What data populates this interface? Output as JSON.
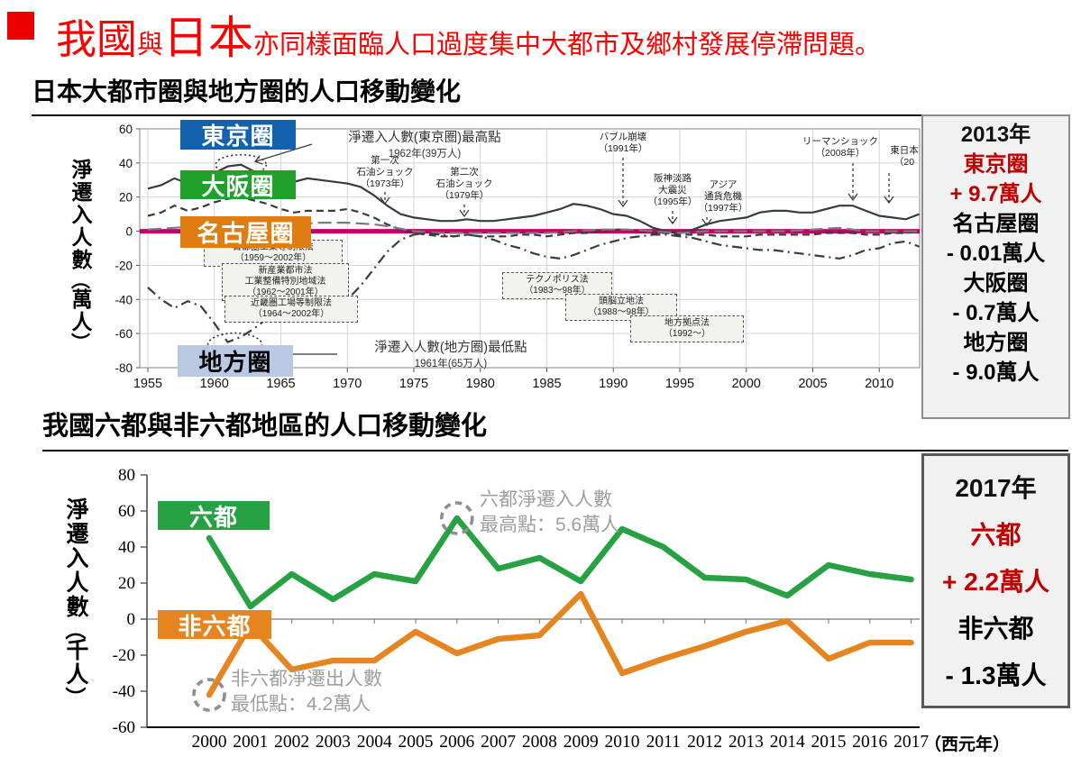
{
  "header": {
    "bullet_color": "#ee0000",
    "text_color": "#fb0000",
    "title_parts": [
      {
        "text": "我國",
        "size": "large"
      },
      {
        "text": "與",
        "size": "small"
      },
      {
        "text": "日本",
        "size": "xlarge"
      },
      {
        "text": "亦同樣面臨人口過度集中大都市及鄉村發展停滯問題。",
        "size": "small"
      }
    ]
  },
  "section1": {
    "title": "日本大都市圈與地方圈的人口移動變化"
  },
  "section2": {
    "title": "我國六都與非六都地區的人口移動變化"
  },
  "japan_summary_box": {
    "year": "2013年",
    "entries": [
      {
        "label": "東京圈",
        "value": "+ 9.7萬人",
        "color": "#c00000"
      },
      {
        "label": "名古屋圈",
        "value": "- 0.01萬人",
        "color": "#000000"
      },
      {
        "label": "大阪圈",
        "value": "- 0.7萬人",
        "color": "#000000"
      },
      {
        "label": "地方圈",
        "value": "- 9.0萬人",
        "color": "#000000"
      }
    ]
  },
  "taiwan_summary_box": {
    "year": "2017年",
    "entries": [
      {
        "label": "六都",
        "value": "+ 2.2萬人",
        "color": "#c00000"
      },
      {
        "label": "非六都",
        "value": "- 1.3萬人",
        "color": "#000000"
      }
    ]
  },
  "chart_data": [
    {
      "id": "japan-migration",
      "type": "line",
      "title": "日本大都市圈與地方圈的人口移動變化",
      "ylabel": "淨遷入人數（萬人）",
      "ylim": [
        -80,
        60
      ],
      "yticks": [
        60,
        40,
        20,
        0,
        -20,
        -40,
        -60,
        -80
      ],
      "xticks": [
        1955,
        1960,
        1965,
        1970,
        1975,
        1980,
        1985,
        1990,
        1995,
        2000,
        2005,
        2010
      ],
      "xrange": [
        1955,
        2013
      ],
      "grid": true,
      "zero_line_color": "#c10067",
      "series": [
        {
          "name": "東京圈",
          "style": "solid",
          "color": "#3b3b3b",
          "chip_bg": "#1461ae",
          "chip_fg": "#ffffff",
          "points": [
            [
              1955,
              25
            ],
            [
              1956,
              27
            ],
            [
              1957,
              31
            ],
            [
              1958,
              28
            ],
            [
              1959,
              31
            ],
            [
              1960,
              34
            ],
            [
              1961,
              38
            ],
            [
              1962,
              39
            ],
            [
              1963,
              35
            ],
            [
              1964,
              32
            ],
            [
              1965,
              30
            ],
            [
              1966,
              29
            ],
            [
              1967,
              31
            ],
            [
              1968,
              30
            ],
            [
              1969,
              29
            ],
            [
              1970,
              28
            ],
            [
              1971,
              26
            ],
            [
              1972,
              21
            ],
            [
              1973,
              15
            ],
            [
              1974,
              10
            ],
            [
              1975,
              8
            ],
            [
              1976,
              7
            ],
            [
              1977,
              6
            ],
            [
              1978,
              6
            ],
            [
              1979,
              7
            ],
            [
              1980,
              6
            ],
            [
              1981,
              6
            ],
            [
              1982,
              7
            ],
            [
              1983,
              8
            ],
            [
              1984,
              9
            ],
            [
              1985,
              11
            ],
            [
              1986,
              13
            ],
            [
              1987,
              16
            ],
            [
              1988,
              15
            ],
            [
              1989,
              13
            ],
            [
              1990,
              10
            ],
            [
              1991,
              9
            ],
            [
              1992,
              6
            ],
            [
              1993,
              2
            ],
            [
              1994,
              0
            ],
            [
              1995,
              -1
            ],
            [
              1996,
              1
            ],
            [
              1997,
              4
            ],
            [
              1998,
              6
            ],
            [
              1999,
              7
            ],
            [
              2000,
              8
            ],
            [
              2001,
              11
            ],
            [
              2002,
              12
            ],
            [
              2003,
              12
            ],
            [
              2004,
              11
            ],
            [
              2005,
              11
            ],
            [
              2006,
              13
            ],
            [
              2007,
              15
            ],
            [
              2008,
              15
            ],
            [
              2009,
              12
            ],
            [
              2010,
              9
            ],
            [
              2011,
              8
            ],
            [
              2012,
              7
            ],
            [
              2013,
              10
            ]
          ]
        },
        {
          "name": "大阪圈",
          "style": "dashed",
          "color": "#3b3b3b",
          "chip_bg": "#21a12b",
          "chip_fg": "#ffffff",
          "points": [
            [
              1955,
              9
            ],
            [
              1956,
              11
            ],
            [
              1957,
              15
            ],
            [
              1958,
              12
            ],
            [
              1959,
              14
            ],
            [
              1960,
              17
            ],
            [
              1961,
              19
            ],
            [
              1962,
              20
            ],
            [
              1963,
              18
            ],
            [
              1964,
              16
            ],
            [
              1965,
              13
            ],
            [
              1966,
              11
            ],
            [
              1967,
              12
            ],
            [
              1968,
              12
            ],
            [
              1969,
              12
            ],
            [
              1970,
              13
            ],
            [
              1971,
              11
            ],
            [
              1972,
              8
            ],
            [
              1973,
              4
            ],
            [
              1974,
              1
            ],
            [
              1975,
              -1
            ],
            [
              1976,
              -2
            ],
            [
              1977,
              -3
            ],
            [
              1978,
              -3
            ],
            [
              1979,
              -2
            ],
            [
              1980,
              -3
            ],
            [
              1981,
              -3
            ],
            [
              1982,
              -3
            ],
            [
              1983,
              -2
            ],
            [
              1984,
              -2
            ],
            [
              1985,
              -3
            ],
            [
              1986,
              -2
            ],
            [
              1987,
              -1
            ],
            [
              1988,
              -1
            ],
            [
              1989,
              0
            ],
            [
              1990,
              1
            ],
            [
              1991,
              1
            ],
            [
              1992,
              0
            ],
            [
              1993,
              -1
            ],
            [
              1994,
              -1
            ],
            [
              1995,
              -2
            ],
            [
              1996,
              -2
            ],
            [
              1997,
              -2
            ],
            [
              1998,
              -3
            ],
            [
              1999,
              -3
            ],
            [
              2000,
              -3
            ],
            [
              2001,
              -2
            ],
            [
              2002,
              -2
            ],
            [
              2003,
              -2
            ],
            [
              2004,
              -2
            ],
            [
              2005,
              -2
            ],
            [
              2006,
              -1
            ],
            [
              2007,
              -1
            ],
            [
              2008,
              -1
            ],
            [
              2009,
              -2
            ],
            [
              2010,
              -2
            ],
            [
              2011,
              -1
            ],
            [
              2012,
              -1
            ],
            [
              2013,
              0
            ]
          ]
        },
        {
          "name": "名古屋圈",
          "style": "longdash",
          "color": "#7a7a7a",
          "chip_bg": "#e07d12",
          "chip_fg": "#ffffff",
          "points": [
            [
              1955,
              1
            ],
            [
              1957,
              2
            ],
            [
              1959,
              3
            ],
            [
              1961,
              4
            ],
            [
              1962,
              5
            ],
            [
              1964,
              4
            ],
            [
              1966,
              4
            ],
            [
              1968,
              5
            ],
            [
              1970,
              5
            ],
            [
              1972,
              4
            ],
            [
              1973,
              3
            ],
            [
              1975,
              0
            ],
            [
              1977,
              -1
            ],
            [
              1979,
              -1
            ],
            [
              1981,
              -1
            ],
            [
              1983,
              -1
            ],
            [
              1985,
              -1
            ],
            [
              1987,
              0
            ],
            [
              1989,
              1
            ],
            [
              1991,
              1
            ],
            [
              1993,
              0
            ],
            [
              1995,
              -1
            ],
            [
              1997,
              0
            ],
            [
              1999,
              0
            ],
            [
              2001,
              0
            ],
            [
              2003,
              0
            ],
            [
              2005,
              1
            ],
            [
              2007,
              2
            ],
            [
              2009,
              0
            ],
            [
              2011,
              0
            ],
            [
              2013,
              0
            ]
          ]
        },
        {
          "name": "地方圈",
          "style": "dashdot",
          "color": "#3b3b3b",
          "chip_bg": "#b9c8e3",
          "chip_fg": "#000000",
          "points": [
            [
              1955,
              -33
            ],
            [
              1956,
              -40
            ],
            [
              1957,
              -45
            ],
            [
              1958,
              -41
            ],
            [
              1959,
              -44
            ],
            [
              1960,
              -54
            ],
            [
              1961,
              -65
            ],
            [
              1962,
              -62
            ],
            [
              1963,
              -57
            ],
            [
              1964,
              -51
            ],
            [
              1965,
              -46
            ],
            [
              1966,
              -42
            ],
            [
              1967,
              -44
            ],
            [
              1968,
              -47
            ],
            [
              1969,
              -44
            ],
            [
              1970,
              -40
            ],
            [
              1971,
              -32
            ],
            [
              1972,
              -22
            ],
            [
              1973,
              -12
            ],
            [
              1974,
              -5
            ],
            [
              1975,
              -2
            ],
            [
              1976,
              -1
            ],
            [
              1977,
              -2
            ],
            [
              1978,
              -3
            ],
            [
              1979,
              -2
            ],
            [
              1980,
              -3
            ],
            [
              1981,
              -5
            ],
            [
              1982,
              -8
            ],
            [
              1983,
              -10
            ],
            [
              1984,
              -13
            ],
            [
              1985,
              -15
            ],
            [
              1986,
              -16
            ],
            [
              1987,
              -14
            ],
            [
              1988,
              -11
            ],
            [
              1989,
              -8
            ],
            [
              1990,
              -6
            ],
            [
              1991,
              -4
            ],
            [
              1992,
              -3
            ],
            [
              1993,
              -2
            ],
            [
              1994,
              -2
            ],
            [
              1995,
              -3
            ],
            [
              1996,
              -4
            ],
            [
              1997,
              -6
            ],
            [
              1998,
              -8
            ],
            [
              1999,
              -9
            ],
            [
              2000,
              -10
            ],
            [
              2001,
              -11
            ],
            [
              2002,
              -11
            ],
            [
              2003,
              -12
            ],
            [
              2004,
              -13
            ],
            [
              2005,
              -14
            ],
            [
              2006,
              -15
            ],
            [
              2007,
              -16
            ],
            [
              2008,
              -14
            ],
            [
              2009,
              -11
            ],
            [
              2010,
              -10
            ],
            [
              2011,
              -7
            ],
            [
              2012,
              -6
            ],
            [
              2013,
              -9
            ]
          ]
        }
      ],
      "annotations": {
        "peak": {
          "text_line1": "淨遷入人數(東京圈)最高點",
          "text_line2": "1962年(39万人)",
          "year": 1962,
          "value": 39
        },
        "trough": {
          "text_line1": "淨遷入人數(地方圈)最低點",
          "text_line2": "1961年(65万人)",
          "year": 1961,
          "value": -65
        },
        "events": [
          {
            "text": "第一次\n石油ショック\n（1973年）",
            "year": 1973
          },
          {
            "text": "第二次\n石油ショック\n（1979年）",
            "year": 1979
          },
          {
            "text": "バブル崩壊\n（1991年）",
            "year": 1991
          },
          {
            "text": "阪神淡路\n大震災\n（1995年）",
            "year": 1995
          },
          {
            "text": "アジア\n通貨危機\n（1997年）",
            "year": 1997
          },
          {
            "text": "リーマンショック\n（2008年）",
            "year": 2008
          },
          {
            "text": "東日本\n（20",
            "year": 2011
          }
        ],
        "law_boxes": [
          {
            "text": "首都圏工業等制限法\n（1959～2002年）"
          },
          {
            "text": "新産業都市法\n工業整備特別地域法\n（1962～2001年）"
          },
          {
            "text": "近畿圏工場等制限法\n（1964～2002年）"
          },
          {
            "text": "テクノポリス法\n（1983～98年）"
          },
          {
            "text": "頭脳立地法\n（1988～98年）"
          },
          {
            "text": "地方拠点法\n（1992～）"
          }
        ]
      }
    },
    {
      "id": "taiwan-migration",
      "type": "line",
      "title": "我國六都與非六都地區的人口移動變化",
      "ylabel": "淨遷入人數（千人）",
      "xlabel": "（西元年）",
      "ylim": [
        -60,
        80
      ],
      "yticks": [
        80,
        60,
        40,
        20,
        0,
        -20,
        -40,
        -60
      ],
      "grid": false,
      "years": [
        2000,
        2001,
        2002,
        2003,
        2004,
        2005,
        2006,
        2007,
        2008,
        2009,
        2010,
        2011,
        2012,
        2013,
        2014,
        2015,
        2016,
        2017
      ],
      "series": [
        {
          "name": "六都",
          "color": "#27a243",
          "chip_bg": "#27a243",
          "chip_fg": "#ffffff",
          "values": [
            45,
            7,
            25,
            11,
            25,
            21,
            56,
            28,
            34,
            21,
            50,
            40,
            23,
            22,
            13,
            30,
            25,
            22
          ]
        },
        {
          "name": "非六都",
          "color": "#e6851f",
          "chip_bg": "#e6851f",
          "chip_fg": "#ffffff",
          "values": [
            -42,
            -3,
            -28,
            -23,
            -23,
            -7,
            -19,
            -11,
            -9,
            14,
            -30,
            -22,
            -15,
            -7,
            -1,
            -22,
            -13,
            -13
          ]
        }
      ],
      "annotations": [
        {
          "text": "六都淨遷入人數\n最高點：5.6萬人",
          "year": 2006,
          "value": 56
        },
        {
          "text": "非六都淨遷出人數\n最低點：4.2萬人",
          "year": 2000,
          "value": -42
        }
      ]
    }
  ]
}
